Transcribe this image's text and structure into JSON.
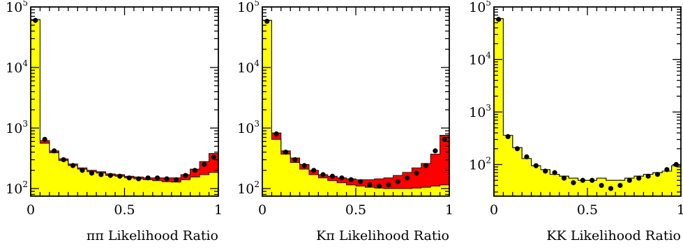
{
  "chart_data": [
    {
      "type": "histogram",
      "xlabel": "ππ Likelihood Ratio",
      "xlim": [
        0,
        1
      ],
      "ylim": [
        75,
        100000
      ],
      "yscale": "log",
      "xticks": [
        "0",
        "0.5",
        "1"
      ],
      "yticks": [
        {
          "value": 100,
          "base": "10",
          "exp": "2"
        },
        {
          "value": 1000,
          "base": "10",
          "exp": "3"
        },
        {
          "value": 10000,
          "base": "10",
          "exp": "4"
        },
        {
          "value": 100000,
          "base": "10",
          "exp": "5"
        }
      ],
      "bin_edges": [
        0,
        0.05,
        0.1,
        0.15,
        0.2,
        0.25,
        0.3,
        0.35,
        0.4,
        0.45,
        0.5,
        0.55,
        0.6,
        0.65,
        0.7,
        0.75,
        0.8,
        0.85,
        0.9,
        0.95,
        1.0
      ],
      "series": [
        {
          "color": "#ffff00",
          "values": [
            62000,
            560,
            390,
            290,
            240,
            210,
            190,
            180,
            165,
            160,
            150,
            145,
            140,
            135,
            130,
            128,
            140,
            155,
            170,
            185
          ]
        },
        {
          "color": "#ff0000",
          "values": [
            62000,
            620,
            420,
            310,
            255,
            220,
            200,
            190,
            175,
            170,
            160,
            155,
            150,
            150,
            150,
            150,
            170,
            210,
            280,
            380
          ]
        }
      ],
      "points": [
        60000,
        650,
        420,
        300,
        240,
        200,
        180,
        170,
        165,
        160,
        150,
        145,
        150,
        150,
        145,
        140,
        165,
        200,
        250,
        330
      ]
    },
    {
      "type": "histogram",
      "xlabel": "Kπ Likelihood Ratio",
      "xlim": [
        0,
        1
      ],
      "ylim": [
        75,
        100000
      ],
      "yscale": "log",
      "xticks": [
        "0",
        "0.5",
        "1"
      ],
      "yticks": [
        {
          "value": 100,
          "base": "10",
          "exp": "2"
        },
        {
          "value": 1000,
          "base": "10",
          "exp": "3"
        },
        {
          "value": 10000,
          "base": "10",
          "exp": "4"
        },
        {
          "value": 100000,
          "base": "10",
          "exp": "5"
        }
      ],
      "bin_edges": [
        0,
        0.05,
        0.1,
        0.15,
        0.2,
        0.25,
        0.3,
        0.35,
        0.4,
        0.45,
        0.5,
        0.55,
        0.6,
        0.65,
        0.7,
        0.75,
        0.8,
        0.85,
        0.9,
        0.95,
        1.0
      ],
      "series": [
        {
          "color": "#ffff00",
          "values": [
            60000,
            650,
            370,
            270,
            210,
            170,
            150,
            135,
            125,
            115,
            110,
            105,
            102,
            100,
            100,
            100,
            102,
            105,
            110,
            115
          ]
        },
        {
          "color": "#ff0000",
          "values": [
            60000,
            830,
            420,
            320,
            250,
            200,
            170,
            160,
            150,
            145,
            140,
            140,
            145,
            150,
            165,
            185,
            220,
            260,
            370,
            760
          ]
        }
      ],
      "points": [
        58000,
        800,
        400,
        300,
        240,
        200,
        170,
        160,
        150,
        140,
        130,
        115,
        110,
        115,
        130,
        150,
        180,
        240,
        420,
        650
      ]
    },
    {
      "type": "histogram",
      "xlabel": "KK Likelihood Ratio",
      "xlim": [
        0,
        1
      ],
      "ylim": [
        25,
        100000
      ],
      "yscale": "log",
      "xticks": [
        "0",
        "0.5",
        "1"
      ],
      "yticks": [
        {
          "value": 100,
          "base": "10",
          "exp": "2"
        },
        {
          "value": 1000,
          "base": "10",
          "exp": "3"
        },
        {
          "value": 10000,
          "base": "10",
          "exp": "4"
        },
        {
          "value": 100000,
          "base": "10",
          "exp": "5"
        }
      ],
      "bin_edges": [
        0,
        0.05,
        0.1,
        0.15,
        0.2,
        0.25,
        0.3,
        0.35,
        0.4,
        0.45,
        0.5,
        0.55,
        0.6,
        0.65,
        0.7,
        0.75,
        0.8,
        0.85,
        0.9,
        0.95,
        1.0
      ],
      "series": [
        {
          "color": "#ffff00",
          "values": [
            60000,
            360,
            210,
            130,
            95,
            80,
            65,
            60,
            55,
            50,
            50,
            55,
            50,
            50,
            55,
            60,
            65,
            70,
            75,
            95
          ]
        },
        {
          "color": "#ff0000",
          "values": [
            60000,
            360,
            210,
            130,
            95,
            80,
            65,
            60,
            55,
            50,
            50,
            55,
            50,
            50,
            55,
            60,
            65,
            70,
            75,
            95
          ]
        }
      ],
      "points": [
        58000,
        340,
        200,
        140,
        95,
        75,
        70,
        55,
        45,
        50,
        50,
        40,
        35,
        40,
        50,
        55,
        60,
        65,
        80,
        100
      ]
    }
  ]
}
